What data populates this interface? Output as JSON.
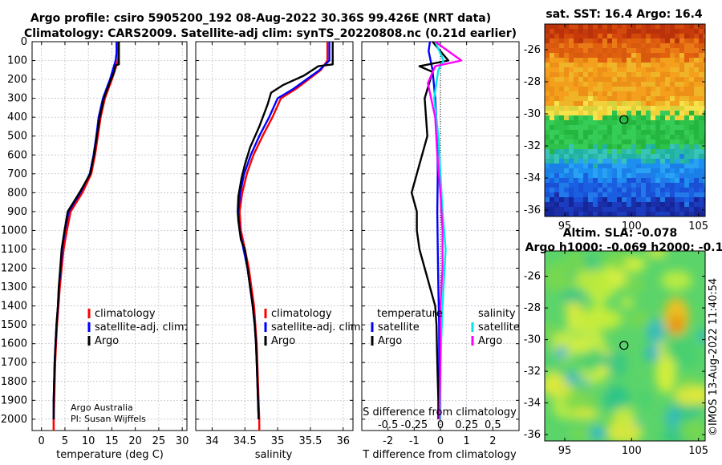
{
  "header": {
    "title_line1": "Argo profile: csiro 5905200_192 08-Aug-2022 30.36S 99.426E (NRT data)",
    "title_line2": "Climatology: CARS2009. Satellite-adj clim: synTS_20220808.nc (0.21d earlier)"
  },
  "credits": {
    "line1": "Argo Australia",
    "line2": "PI: Susan Wijffels"
  },
  "timestamp": "©IMOS 13-Aug-2022 11:40:54",
  "colors": {
    "climatology": "#ff0000",
    "satellite": "#0000ff",
    "argo": "#000000",
    "temp_sat_diff": "#00e5ee",
    "sal_argo_diff": "#ff00ff",
    "zero_line": "#000000"
  },
  "chart_data": [
    {
      "id": "temperature",
      "type": "line",
      "xlabel": "temperature (deg C)",
      "ylabel": "",
      "xlim": [
        -2,
        31
      ],
      "ylim": [
        2060,
        0
      ],
      "xticks": [
        0,
        5,
        10,
        15,
        20,
        25,
        30
      ],
      "yticks": [
        0,
        100,
        200,
        300,
        400,
        500,
        600,
        700,
        800,
        900,
        1000,
        1100,
        1200,
        1300,
        1400,
        1500,
        1600,
        1700,
        1800,
        1900,
        2000
      ],
      "legend": [
        "climatology",
        "satellite-adj. clim.",
        "Argo"
      ],
      "legend_placement": "bottom-right",
      "series": [
        {
          "name": "climatology",
          "color": "#ff0000",
          "points": [
            [
              16.4,
              0
            ],
            [
              16.4,
              60
            ],
            [
              16.3,
              100
            ],
            [
              15.0,
              200
            ],
            [
              13.5,
              300
            ],
            [
              12.6,
              400
            ],
            [
              12.0,
              500
            ],
            [
              11.4,
              600
            ],
            [
              10.6,
              700
            ],
            [
              8.7,
              800
            ],
            [
              6.2,
              900
            ],
            [
              5.4,
              1000
            ],
            [
              4.7,
              1100
            ],
            [
              4.3,
              1200
            ],
            [
              3.9,
              1300
            ],
            [
              3.6,
              1400
            ],
            [
              3.3,
              1500
            ],
            [
              3.1,
              1600
            ],
            [
              2.9,
              1700
            ],
            [
              2.8,
              1800
            ],
            [
              2.7,
              1900
            ],
            [
              2.6,
              2000
            ],
            [
              2.6,
              2060
            ]
          ]
        },
        {
          "name": "satellite-adj. clim.",
          "color": "#0000ff",
          "points": [
            [
              16.0,
              0
            ],
            [
              16.0,
              60
            ],
            [
              15.8,
              100
            ],
            [
              14.6,
              200
            ],
            [
              13.1,
              300
            ],
            [
              12.2,
              400
            ],
            [
              11.7,
              500
            ],
            [
              11.1,
              600
            ],
            [
              10.3,
              700
            ],
            [
              8.3,
              800
            ],
            [
              5.8,
              900
            ],
            [
              5.0,
              1000
            ],
            [
              4.4,
              1100
            ],
            [
              4.1,
              1200
            ],
            [
              3.7,
              1300
            ],
            [
              3.5,
              1400
            ],
            [
              3.2,
              1500
            ],
            [
              3.0,
              1600
            ],
            [
              2.8,
              1700
            ],
            [
              2.7,
              1800
            ],
            [
              2.6,
              1900
            ],
            [
              2.6,
              2000
            ]
          ]
        },
        {
          "name": "Argo",
          "color": "#000000",
          "points": [
            [
              16.5,
              0
            ],
            [
              16.5,
              120
            ],
            [
              15.8,
              125
            ],
            [
              15.5,
              160
            ],
            [
              14.8,
              200
            ],
            [
              13.3,
              300
            ],
            [
              12.4,
              400
            ],
            [
              11.8,
              500
            ],
            [
              11.2,
              600
            ],
            [
              10.4,
              700
            ],
            [
              8.1,
              800
            ],
            [
              5.6,
              900
            ],
            [
              4.9,
              1000
            ],
            [
              4.3,
              1100
            ],
            [
              4.0,
              1200
            ],
            [
              3.7,
              1300
            ],
            [
              3.5,
              1400
            ],
            [
              3.2,
              1500
            ],
            [
              3.0,
              1600
            ],
            [
              2.8,
              1700
            ],
            [
              2.7,
              1800
            ],
            [
              2.6,
              1900
            ],
            [
              2.6,
              2000
            ]
          ]
        }
      ]
    },
    {
      "id": "salinity",
      "type": "line",
      "xlabel": "salinity",
      "ylabel": "",
      "xlim": [
        33.75,
        36.15
      ],
      "ylim": [
        2060,
        0
      ],
      "xticks": [
        34,
        34.5,
        35,
        35.5,
        36
      ],
      "legend": [
        "climatology",
        "satellite-adj. clim.",
        "Argo"
      ],
      "legend_placement": "bottom-right",
      "series": [
        {
          "name": "climatology",
          "color": "#ff0000",
          "points": [
            [
              35.76,
              0
            ],
            [
              35.76,
              100
            ],
            [
              35.66,
              150
            ],
            [
              35.28,
              250
            ],
            [
              35.05,
              300
            ],
            [
              34.92,
              400
            ],
            [
              34.77,
              500
            ],
            [
              34.63,
              600
            ],
            [
              34.53,
              700
            ],
            [
              34.46,
              800
            ],
            [
              34.42,
              900
            ],
            [
              34.44,
              1000
            ],
            [
              34.5,
              1100
            ],
            [
              34.56,
              1200
            ],
            [
              34.6,
              1300
            ],
            [
              34.64,
              1400
            ],
            [
              34.66,
              1500
            ],
            [
              34.68,
              1600
            ],
            [
              34.69,
              1700
            ],
            [
              34.7,
              1800
            ],
            [
              34.71,
              1900
            ],
            [
              34.72,
              2000
            ],
            [
              34.72,
              2060
            ]
          ]
        },
        {
          "name": "satellite-adj. clim.",
          "color": "#0000ff",
          "points": [
            [
              35.79,
              0
            ],
            [
              35.79,
              100
            ],
            [
              35.64,
              150
            ],
            [
              35.24,
              250
            ],
            [
              35.0,
              300
            ],
            [
              34.87,
              400
            ],
            [
              34.72,
              500
            ],
            [
              34.59,
              600
            ],
            [
              34.49,
              700
            ],
            [
              34.43,
              800
            ],
            [
              34.4,
              900
            ],
            [
              34.42,
              1000
            ],
            [
              34.48,
              1100
            ],
            [
              34.54,
              1200
            ],
            [
              34.58,
              1300
            ],
            [
              34.62,
              1400
            ],
            [
              34.65,
              1500
            ],
            [
              34.67,
              1600
            ],
            [
              34.68,
              1700
            ],
            [
              34.69,
              1800
            ],
            [
              34.7,
              1900
            ],
            [
              34.71,
              2000
            ]
          ]
        },
        {
          "name": "Argo",
          "color": "#000000",
          "points": [
            [
              35.84,
              0
            ],
            [
              35.84,
              120
            ],
            [
              35.62,
              130
            ],
            [
              35.4,
              180
            ],
            [
              35.08,
              230
            ],
            [
              34.9,
              270
            ],
            [
              34.85,
              330
            ],
            [
              34.72,
              450
            ],
            [
              34.58,
              560
            ],
            [
              34.5,
              650
            ],
            [
              34.45,
              720
            ],
            [
              34.4,
              820
            ],
            [
              34.39,
              900
            ],
            [
              34.4,
              950
            ],
            [
              34.44,
              1050
            ],
            [
              34.5,
              1100
            ],
            [
              34.54,
              1200
            ],
            [
              34.58,
              1300
            ],
            [
              34.62,
              1400
            ],
            [
              34.65,
              1500
            ],
            [
              34.67,
              1600
            ],
            [
              34.68,
              1700
            ],
            [
              34.69,
              1800
            ],
            [
              34.7,
              1900
            ],
            [
              34.71,
              2000
            ]
          ]
        }
      ]
    },
    {
      "id": "difference",
      "type": "line",
      "xlabel": "T difference from climatology",
      "ylabel": "",
      "xlim": [
        -3,
        3
      ],
      "ylim": [
        2060,
        0
      ],
      "xticks": [
        -2,
        -1,
        0,
        1,
        2
      ],
      "xlabel2": "S difference from climatology",
      "xlim2": [
        -0.75,
        0.75
      ],
      "xticks2": [
        -0.5,
        -0.25,
        0,
        0.25,
        0.5
      ],
      "xticklabels2": [
        "-0.5",
        "-0.25",
        "0",
        "0.25",
        "0.5"
      ],
      "legend_temperature": {
        "title": "temperature",
        "entries": [
          "satellite",
          "Argo"
        ]
      },
      "legend_salinity": {
        "title": "salinity",
        "entries": [
          "satellite",
          "Argo"
        ]
      },
      "series": [
        {
          "name": "temperature satellite",
          "axis": "T",
          "color": "#0000ff",
          "points": [
            [
              -0.4,
              0
            ],
            [
              -0.45,
              50
            ],
            [
              -0.3,
              150
            ],
            [
              -0.2,
              300
            ],
            [
              -0.12,
              500
            ],
            [
              -0.1,
              700
            ],
            [
              -0.12,
              900
            ],
            [
              -0.1,
              1100
            ],
            [
              -0.08,
              1300
            ],
            [
              -0.05,
              1500
            ],
            [
              -0.05,
              1700
            ],
            [
              -0.03,
              1900
            ],
            [
              -0.03,
              2000
            ]
          ]
        },
        {
          "name": "temperature Argo",
          "axis": "T",
          "color": "#000000",
          "points": [
            [
              -0.3,
              0
            ],
            [
              0.3,
              100
            ],
            [
              -0.8,
              130
            ],
            [
              -0.3,
              160
            ],
            [
              -0.6,
              300
            ],
            [
              -0.5,
              500
            ],
            [
              -0.9,
              700
            ],
            [
              -1.1,
              800
            ],
            [
              -0.9,
              900
            ],
            [
              -0.9,
              1000
            ],
            [
              -0.8,
              1100
            ],
            [
              -0.6,
              1200
            ],
            [
              -0.4,
              1300
            ],
            [
              -0.2,
              1400
            ],
            [
              -0.15,
              1500
            ],
            [
              -0.12,
              1700
            ],
            [
              -0.08,
              1900
            ],
            [
              -0.08,
              2000
            ]
          ]
        },
        {
          "name": "salinity satellite",
          "axis": "S",
          "color": "#00e5ee",
          "points": [
            [
              -0.05,
              0
            ],
            [
              0.03,
              100
            ],
            [
              -0.02,
              150
            ],
            [
              -0.06,
              300
            ],
            [
              -0.02,
              500
            ],
            [
              0.0,
              700
            ],
            [
              0.02,
              900
            ],
            [
              0.05,
              1100
            ],
            [
              0.02,
              1400
            ],
            [
              0.0,
              1700
            ],
            [
              0.0,
              2000
            ]
          ]
        },
        {
          "name": "salinity Argo",
          "axis": "S",
          "color": "#ff00ff",
          "points": [
            [
              -0.05,
              0
            ],
            [
              0.2,
              100
            ],
            [
              -0.05,
              130
            ],
            [
              -0.12,
              220
            ],
            [
              -0.05,
              400
            ],
            [
              -0.03,
              600
            ],
            [
              0.0,
              800
            ],
            [
              0.02,
              1000
            ],
            [
              0.02,
              1200
            ],
            [
              0.0,
              1400
            ],
            [
              0.0,
              1700
            ],
            [
              -0.01,
              2000
            ]
          ]
        }
      ]
    },
    {
      "id": "sst_map",
      "type": "heatmap",
      "title": "sat. SST: 16.4 Argo: 16.4",
      "xlim": [
        93.5,
        105.5
      ],
      "ylim": [
        -36.4,
        -24.4
      ],
      "xticks": [
        95,
        100,
        105
      ],
      "yticks": [
        -26,
        -28,
        -30,
        -32,
        -34,
        -36
      ],
      "marker": {
        "lon": 99.426,
        "lat": -30.36
      }
    },
    {
      "id": "sla_map",
      "type": "heatmap",
      "title": "Altim. SLA: -0.078",
      "subtitle": "Argo h1000: -0.069 h2000: -0.1",
      "xlim": [
        93.5,
        105.5
      ],
      "ylim": [
        -36.4,
        -24.4
      ],
      "xticks": [
        95,
        100,
        105
      ],
      "yticks": [
        -26,
        -28,
        -30,
        -32,
        -34,
        -36
      ],
      "marker": {
        "lon": 99.426,
        "lat": -30.36
      }
    }
  ]
}
